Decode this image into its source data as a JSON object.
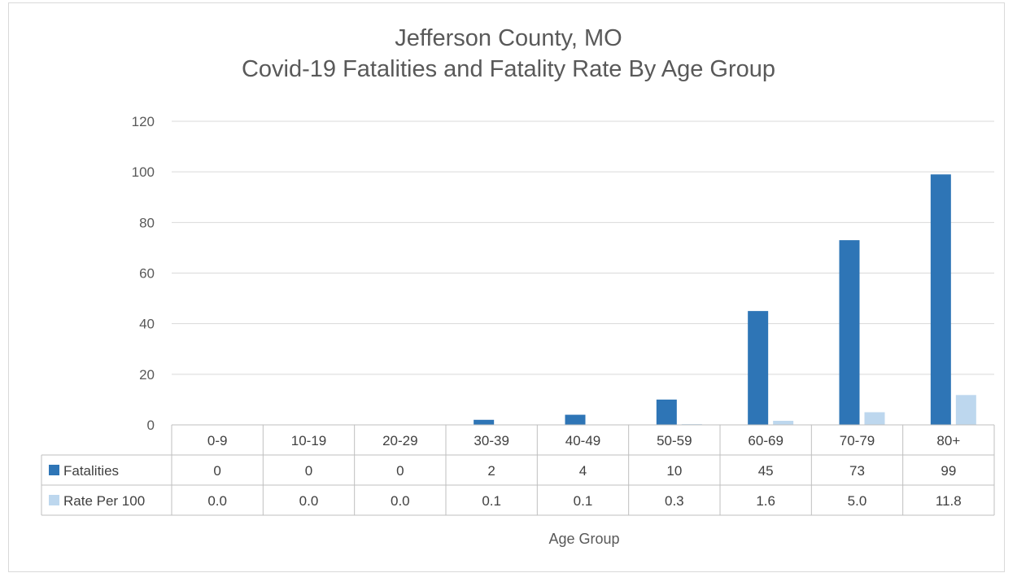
{
  "chart_data": {
    "type": "bar",
    "title": [
      "Jefferson County, MO",
      "Covid-19 Fatalities and Fatality Rate By Age Group"
    ],
    "xlabel": "Age Group",
    "ylabel": "",
    "ylim": [
      0,
      120
    ],
    "yticks": [
      0,
      20,
      40,
      60,
      80,
      100,
      120
    ],
    "grid": true,
    "legend": "data-table",
    "categories": [
      "0-9",
      "10-19",
      "20-29",
      "30-39",
      "40-49",
      "50-59",
      "60-69",
      "70-79",
      "80+"
    ],
    "series": [
      {
        "name": "Fatalities",
        "color": "#2e75b6",
        "values": [
          0,
          0,
          0,
          2,
          4,
          10,
          45,
          73,
          99
        ],
        "labels": [
          "0",
          "0",
          "0",
          "2",
          "4",
          "10",
          "45",
          "73",
          "99"
        ]
      },
      {
        "name": "Rate Per 100",
        "color": "#bdd7ee",
        "values": [
          0.0,
          0.0,
          0.0,
          0.1,
          0.1,
          0.3,
          1.6,
          5.0,
          11.8
        ],
        "labels": [
          "0.0",
          "0.0",
          "0.0",
          "0.1",
          "0.1",
          "0.3",
          "1.6",
          "5.0",
          "11.8"
        ]
      }
    ]
  }
}
